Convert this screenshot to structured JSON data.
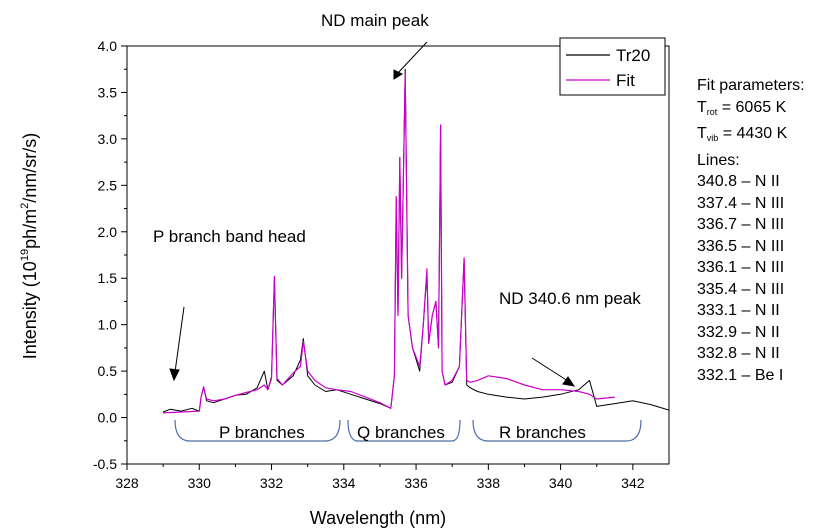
{
  "chart_data": {
    "type": "line",
    "xlabel": "Wavelength (nm)",
    "ylabel_parts": [
      "Intensity (10",
      "19",
      "ph/m",
      "2",
      "/nm/sr/s)"
    ],
    "xlim": [
      328,
      343
    ],
    "ylim": [
      -0.5,
      4.0
    ],
    "x_ticks": [
      328,
      330,
      332,
      334,
      336,
      338,
      340,
      342
    ],
    "x_tick_labels": [
      "328",
      "330",
      "332",
      "334",
      "336",
      "338",
      "340",
      "342"
    ],
    "y_ticks": [
      -0.5,
      0.0,
      0.5,
      1.0,
      1.5,
      2.0,
      2.5,
      3.0,
      3.5,
      4.0
    ],
    "y_tick_labels": [
      "-0.5",
      "0.0",
      "0.5",
      "1.0",
      "1.5",
      "2.0",
      "2.5",
      "3.0",
      "3.5",
      "4.0"
    ],
    "grid": false,
    "legend_position": "top-right",
    "series": [
      {
        "name": "Tr20",
        "color": "#000000",
        "x": [
          329.0,
          329.2,
          329.5,
          329.8,
          330.0,
          330.05,
          330.12,
          330.2,
          330.4,
          330.7,
          331.0,
          331.3,
          331.6,
          331.8,
          331.9,
          332.0,
          332.08,
          332.15,
          332.3,
          332.6,
          332.8,
          332.88,
          333.0,
          333.2,
          333.5,
          333.8,
          334.2,
          334.6,
          335.0,
          335.3,
          335.4,
          335.45,
          335.5,
          335.55,
          335.6,
          335.65,
          335.7,
          335.78,
          335.9,
          336.1,
          336.2,
          336.3,
          336.35,
          336.45,
          336.55,
          336.62,
          336.68,
          336.72,
          336.8,
          337.0,
          337.2,
          337.33,
          337.4,
          337.5,
          337.7,
          338.0,
          338.5,
          339.0,
          339.5,
          340.0,
          340.5,
          340.8,
          341.0,
          341.5,
          342.0,
          342.5,
          343.0
        ],
        "y": [
          0.06,
          0.09,
          0.07,
          0.1,
          0.07,
          0.22,
          0.33,
          0.18,
          0.16,
          0.2,
          0.24,
          0.25,
          0.32,
          0.5,
          0.3,
          0.44,
          1.5,
          0.4,
          0.35,
          0.45,
          0.62,
          0.85,
          0.45,
          0.35,
          0.28,
          0.3,
          0.25,
          0.2,
          0.15,
          0.1,
          0.45,
          2.35,
          1.1,
          2.8,
          1.5,
          2.6,
          3.75,
          1.1,
          0.75,
          0.5,
          1.0,
          1.55,
          0.8,
          1.1,
          1.25,
          0.75,
          3.15,
          0.5,
          0.35,
          0.38,
          0.55,
          1.7,
          0.35,
          0.32,
          0.28,
          0.25,
          0.22,
          0.2,
          0.22,
          0.25,
          0.3,
          0.4,
          0.12,
          0.15,
          0.18,
          0.14,
          0.08
        ]
      },
      {
        "name": "Fit",
        "color": "#cc00cc",
        "x": [
          329.0,
          329.5,
          330.0,
          330.05,
          330.12,
          330.2,
          330.4,
          330.7,
          331.0,
          331.3,
          331.6,
          331.8,
          331.9,
          332.0,
          332.08,
          332.15,
          332.3,
          332.6,
          332.8,
          332.88,
          333.0,
          333.2,
          333.5,
          333.8,
          334.2,
          334.6,
          335.0,
          335.3,
          335.4,
          335.45,
          335.5,
          335.55,
          335.6,
          335.65,
          335.7,
          335.78,
          335.9,
          336.1,
          336.2,
          336.3,
          336.35,
          336.45,
          336.55,
          336.62,
          336.68,
          336.72,
          336.8,
          337.0,
          337.2,
          337.33,
          337.4,
          337.5,
          337.7,
          338.0,
          338.5,
          339.0,
          339.5,
          340.0,
          340.5,
          340.8,
          341.0,
          341.5
        ],
        "y": [
          0.05,
          0.06,
          0.07,
          0.22,
          0.33,
          0.2,
          0.18,
          0.2,
          0.24,
          0.27,
          0.3,
          0.35,
          0.3,
          0.42,
          1.52,
          0.42,
          0.35,
          0.48,
          0.55,
          0.82,
          0.5,
          0.4,
          0.32,
          0.3,
          0.28,
          0.22,
          0.16,
          0.1,
          0.45,
          2.38,
          1.1,
          2.8,
          1.5,
          2.6,
          3.7,
          1.1,
          0.75,
          0.55,
          1.0,
          1.6,
          0.8,
          1.1,
          1.25,
          0.75,
          3.15,
          0.5,
          0.35,
          0.4,
          0.55,
          1.72,
          0.4,
          0.38,
          0.4,
          0.45,
          0.42,
          0.35,
          0.3,
          0.3,
          0.28,
          0.25,
          0.2,
          0.22
        ]
      }
    ],
    "annotations": {
      "main_peak": "ND main peak",
      "band_head": "P branch band head",
      "nd_peak": "ND 340.6 nm peak",
      "p_branches": "P branches",
      "q_branches": "Q branches",
      "r_branches": "R branches"
    }
  },
  "fit_parameters": {
    "title": "Fit parameters:",
    "trot_symbol": "T",
    "trot_sub": "rot",
    "trot_value": " = 6065 K",
    "tvib_symbol": "T",
    "tvib_sub": "vib",
    "tvib_value": " = 4430 K",
    "lines_title": "Lines:",
    "lines": [
      "340.8 – N II",
      "337.4 – N III",
      "336.7 – N III",
      "336.5 – N III",
      "336.1 – N III",
      "335.4 – N III",
      "333.1 – N II",
      "332.9 – N II",
      "332.8 – N II",
      "332.1 – Be I"
    ]
  }
}
